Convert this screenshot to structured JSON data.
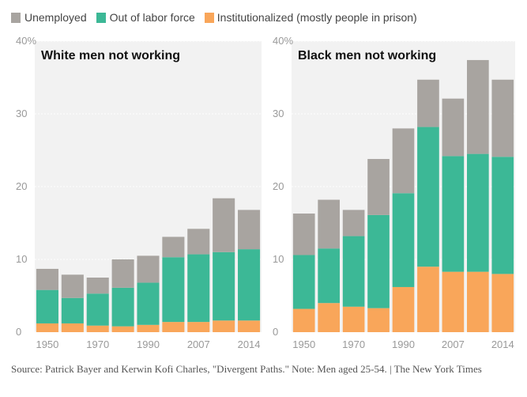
{
  "legend": [
    {
      "label": "Unemployed",
      "color": "#a8a4a0"
    },
    {
      "label": "Out of labor force",
      "color": "#3cb896"
    },
    {
      "label": "Institutionalized (mostly people in prison)",
      "color": "#f9a65a"
    }
  ],
  "source_note": "Source: Patrick Bayer and Kerwin Kofi Charles, \"Divergent Paths.\" Note: Men aged 25-54. | The New York Times",
  "chart_data": [
    {
      "type": "bar",
      "stacked": true,
      "title": "White men not working",
      "categories": [
        "1950",
        "1960",
        "1970",
        "1980",
        "1990",
        "2000",
        "2007",
        "2010",
        "2014"
      ],
      "x_tick_labels": [
        "1950",
        "1970",
        "1990",
        "2007",
        "2014"
      ],
      "ylim": [
        0,
        40
      ],
      "y_ticks": [
        "40%",
        "30",
        "20",
        "10",
        "0"
      ],
      "grid": true,
      "series": [
        {
          "name": "Institutionalized (mostly people in prison)",
          "values": [
            1.2,
            1.2,
            0.9,
            0.8,
            1.0,
            1.4,
            1.4,
            1.6,
            1.6
          ]
        },
        {
          "name": "Out of labor force",
          "values": [
            4.6,
            3.5,
            4.4,
            5.3,
            5.8,
            8.9,
            9.3,
            9.4,
            9.8
          ]
        },
        {
          "name": "Unemployed",
          "values": [
            2.9,
            3.2,
            2.2,
            3.9,
            3.7,
            2.8,
            3.5,
            7.4,
            5.4
          ]
        }
      ]
    },
    {
      "type": "bar",
      "stacked": true,
      "title": "Black men not working",
      "categories": [
        "1950",
        "1960",
        "1970",
        "1980",
        "1990",
        "2000",
        "2007",
        "2010",
        "2014"
      ],
      "x_tick_labels": [
        "1950",
        "1970",
        "1990",
        "2007",
        "2014"
      ],
      "ylim": [
        0,
        40
      ],
      "y_ticks": [
        "40%",
        "30",
        "20",
        "10",
        "0"
      ],
      "grid": true,
      "series": [
        {
          "name": "Institutionalized (mostly people in prison)",
          "values": [
            3.2,
            4.0,
            3.5,
            3.3,
            6.2,
            9.0,
            8.3,
            8.3,
            8.0
          ]
        },
        {
          "name": "Out of labor force",
          "values": [
            7.4,
            7.5,
            9.7,
            12.8,
            12.9,
            19.2,
            15.9,
            16.2,
            16.1
          ]
        },
        {
          "name": "Unemployed",
          "values": [
            5.7,
            6.7,
            3.6,
            7.7,
            8.9,
            6.5,
            7.9,
            12.9,
            10.6
          ]
        }
      ]
    }
  ]
}
